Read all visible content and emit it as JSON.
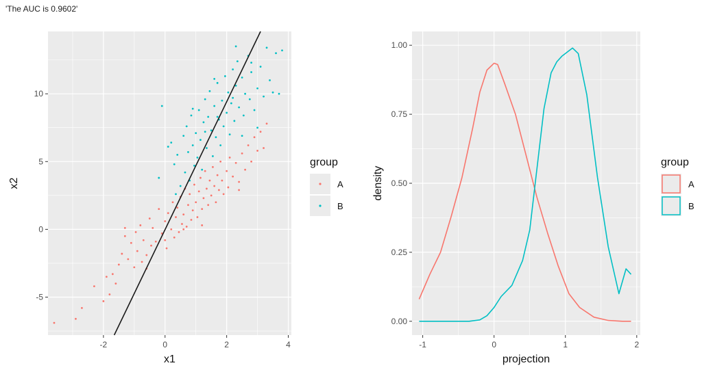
{
  "header": {
    "auc_text": "'The AUC is 0.9602'"
  },
  "colors": {
    "A": "#F8766D",
    "B": "#00BFC4",
    "panel": "#EBEBEB",
    "grid": "#FFFFFF",
    "line": "#1a1a1a"
  },
  "chart_data": [
    {
      "type": "scatter",
      "xlabel": "x1",
      "ylabel": "x2",
      "xlim": [
        -3.8,
        4.1
      ],
      "ylim": [
        -7.8,
        14.6
      ],
      "xticks": [
        -2,
        0,
        2,
        4
      ],
      "yticks": [
        -5,
        0,
        5,
        10
      ],
      "grid": true,
      "legend": {
        "title": "group",
        "placement": "right",
        "entries": [
          "A",
          "B"
        ]
      },
      "line": {
        "x": [
          -1.65,
          3.1
        ],
        "y": [
          -7.8,
          14.6
        ]
      },
      "series": [
        {
          "name": "A",
          "points": [
            [
              -3.6,
              -6.9
            ],
            [
              -2.9,
              -6.6
            ],
            [
              -2.7,
              -5.8
            ],
            [
              -2.3,
              -4.2
            ],
            [
              -2.0,
              -5.3
            ],
            [
              -1.9,
              -3.5
            ],
            [
              -1.8,
              -4.8
            ],
            [
              -1.7,
              -3.3
            ],
            [
              -1.6,
              -4.0
            ],
            [
              -1.5,
              -2.6
            ],
            [
              -1.4,
              -1.8
            ],
            [
              -1.3,
              -0.5
            ],
            [
              -1.2,
              -2.2
            ],
            [
              -1.1,
              -1.0
            ],
            [
              -1.0,
              -2.8
            ],
            [
              -0.95,
              -0.2
            ],
            [
              -0.9,
              -1.6
            ],
            [
              -0.8,
              0.3
            ],
            [
              -0.75,
              -2.4
            ],
            [
              -0.7,
              -0.8
            ],
            [
              -0.6,
              -1.9
            ],
            [
              -0.5,
              0.8
            ],
            [
              -0.45,
              -1.2
            ],
            [
              -0.4,
              0.1
            ],
            [
              -0.3,
              -0.9
            ],
            [
              -0.2,
              1.5
            ],
            [
              -0.1,
              -0.3
            ],
            [
              0.0,
              0.6
            ],
            [
              0.05,
              -1.4
            ],
            [
              0.1,
              1.2
            ],
            [
              0.2,
              0.0
            ],
            [
              0.25,
              2.0
            ],
            [
              0.3,
              -0.6
            ],
            [
              0.35,
              0.9
            ],
            [
              0.4,
              1.6
            ],
            [
              0.45,
              -0.2
            ],
            [
              0.5,
              2.4
            ],
            [
              0.55,
              0.4
            ],
            [
              0.6,
              1.1
            ],
            [
              0.65,
              3.0
            ],
            [
              0.7,
              0.2
            ],
            [
              0.75,
              1.8
            ],
            [
              0.8,
              2.6
            ],
            [
              0.85,
              0.7
            ],
            [
              0.9,
              1.4
            ],
            [
              0.95,
              3.3
            ],
            [
              1.0,
              2.0
            ],
            [
              1.05,
              0.9
            ],
            [
              1.1,
              2.8
            ],
            [
              1.15,
              3.8
            ],
            [
              1.2,
              1.5
            ],
            [
              1.25,
              2.3
            ],
            [
              1.3,
              4.3
            ],
            [
              1.35,
              3.0
            ],
            [
              1.4,
              1.8
            ],
            [
              1.45,
              3.6
            ],
            [
              1.5,
              2.5
            ],
            [
              1.55,
              4.6
            ],
            [
              1.6,
              3.2
            ],
            [
              1.65,
              2.0
            ],
            [
              1.7,
              4.0
            ],
            [
              1.75,
              2.9
            ],
            [
              1.8,
              5.0
            ],
            [
              1.85,
              3.6
            ],
            [
              1.9,
              2.6
            ],
            [
              2.0,
              4.3
            ],
            [
              2.05,
              3.1
            ],
            [
              2.1,
              5.3
            ],
            [
              2.2,
              3.9
            ],
            [
              2.3,
              4.9
            ],
            [
              2.4,
              3.5
            ],
            [
              2.5,
              5.6
            ],
            [
              2.6,
              4.4
            ],
            [
              2.7,
              6.2
            ],
            [
              2.8,
              5.0
            ],
            [
              2.9,
              6.8
            ],
            [
              3.0,
              5.8
            ],
            [
              3.1,
              7.2
            ],
            [
              3.2,
              6.0
            ],
            [
              3.3,
              7.8
            ],
            [
              -1.3,
              0.1
            ],
            [
              -0.6,
              -2.9
            ],
            [
              0.0,
              -0.8
            ],
            [
              0.6,
              0.0
            ],
            [
              1.2,
              0.3
            ],
            [
              2.4,
              2.9
            ]
          ]
        },
        {
          "name": "B",
          "points": [
            [
              -0.2,
              3.8
            ],
            [
              -0.1,
              9.1
            ],
            [
              0.1,
              6.1
            ],
            [
              0.2,
              6.4
            ],
            [
              0.3,
              4.8
            ],
            [
              0.35,
              2.6
            ],
            [
              0.4,
              5.5
            ],
            [
              0.5,
              3.2
            ],
            [
              0.6,
              6.9
            ],
            [
              0.65,
              4.2
            ],
            [
              0.7,
              7.6
            ],
            [
              0.75,
              5.7
            ],
            [
              0.8,
              3.6
            ],
            [
              0.85,
              8.4
            ],
            [
              0.9,
              6.2
            ],
            [
              0.95,
              4.7
            ],
            [
              1.0,
              7.1
            ],
            [
              1.05,
              5.3
            ],
            [
              1.1,
              8.8
            ],
            [
              1.15,
              6.6
            ],
            [
              1.2,
              4.4
            ],
            [
              1.25,
              7.9
            ],
            [
              1.3,
              9.6
            ],
            [
              1.35,
              6.0
            ],
            [
              1.4,
              8.3
            ],
            [
              1.45,
              10.2
            ],
            [
              1.5,
              7.3
            ],
            [
              1.55,
              5.4
            ],
            [
              1.6,
              9.1
            ],
            [
              1.65,
              6.8
            ],
            [
              1.7,
              10.8
            ],
            [
              1.75,
              8.1
            ],
            [
              1.8,
              6.2
            ],
            [
              1.85,
              9.5
            ],
            [
              1.9,
              7.6
            ],
            [
              1.95,
              11.3
            ],
            [
              2.0,
              8.6
            ],
            [
              2.05,
              10.1
            ],
            [
              2.1,
              7.0
            ],
            [
              2.15,
              9.3
            ],
            [
              2.2,
              11.8
            ],
            [
              2.25,
              8.0
            ],
            [
              2.3,
              10.6
            ],
            [
              2.35,
              12.4
            ],
            [
              2.4,
              9.0
            ],
            [
              2.5,
              11.2
            ],
            [
              2.55,
              8.4
            ],
            [
              2.6,
              10.0
            ],
            [
              2.7,
              12.8
            ],
            [
              2.75,
              9.6
            ],
            [
              2.8,
              11.6
            ],
            [
              2.9,
              8.8
            ],
            [
              3.0,
              10.4
            ],
            [
              3.1,
              12.0
            ],
            [
              3.2,
              9.8
            ],
            [
              3.3,
              13.4
            ],
            [
              3.4,
              11.0
            ],
            [
              3.5,
              10.1
            ],
            [
              3.6,
              13.0
            ],
            [
              3.7,
              10.0
            ],
            [
              3.8,
              13.2
            ],
            [
              2.3,
              13.5
            ],
            [
              1.6,
              11.1
            ],
            [
              2.8,
              12.3
            ],
            [
              1.3,
              7.2
            ],
            [
              0.9,
              8.9
            ],
            [
              2.2,
              9.7
            ],
            [
              3.0,
              7.5
            ],
            [
              1.7,
              8.3
            ],
            [
              2.5,
              6.9
            ]
          ]
        }
      ]
    },
    {
      "type": "line",
      "xlabel": "projection",
      "ylabel": "density",
      "xlim": [
        -1.15,
        2.05
      ],
      "ylim": [
        -0.05,
        1.05
      ],
      "xticks": [
        -1,
        0,
        1,
        2
      ],
      "yticks": [
        0.0,
        0.25,
        0.5,
        0.75,
        1.0
      ],
      "ytick_labels": [
        "0.00",
        "0.25",
        "0.50",
        "0.75",
        "1.00"
      ],
      "grid": true,
      "legend": {
        "title": "group",
        "placement": "right",
        "entries": [
          "A",
          "B"
        ]
      },
      "series": [
        {
          "name": "A",
          "x": [
            -1.05,
            -0.9,
            -0.75,
            -0.6,
            -0.45,
            -0.3,
            -0.2,
            -0.1,
            0.0,
            0.05,
            0.15,
            0.3,
            0.45,
            0.6,
            0.75,
            0.9,
            1.05,
            1.2,
            1.4,
            1.6,
            1.8,
            1.92
          ],
          "y": [
            0.08,
            0.17,
            0.25,
            0.38,
            0.52,
            0.7,
            0.83,
            0.91,
            0.935,
            0.93,
            0.86,
            0.75,
            0.6,
            0.45,
            0.32,
            0.2,
            0.1,
            0.05,
            0.015,
            0.003,
            0.0,
            0.0
          ]
        },
        {
          "name": "B",
          "x": [
            -1.05,
            -0.6,
            -0.35,
            -0.2,
            -0.1,
            0.0,
            0.1,
            0.25,
            0.4,
            0.5,
            0.6,
            0.7,
            0.8,
            0.88,
            0.95,
            1.05,
            1.1,
            1.18,
            1.3,
            1.45,
            1.6,
            1.75,
            1.85,
            1.92
          ],
          "y": [
            0.0,
            0.0,
            0.0,
            0.005,
            0.02,
            0.05,
            0.09,
            0.13,
            0.22,
            0.33,
            0.55,
            0.77,
            0.9,
            0.94,
            0.96,
            0.98,
            0.99,
            0.97,
            0.82,
            0.52,
            0.27,
            0.1,
            0.19,
            0.17
          ]
        }
      ]
    }
  ]
}
